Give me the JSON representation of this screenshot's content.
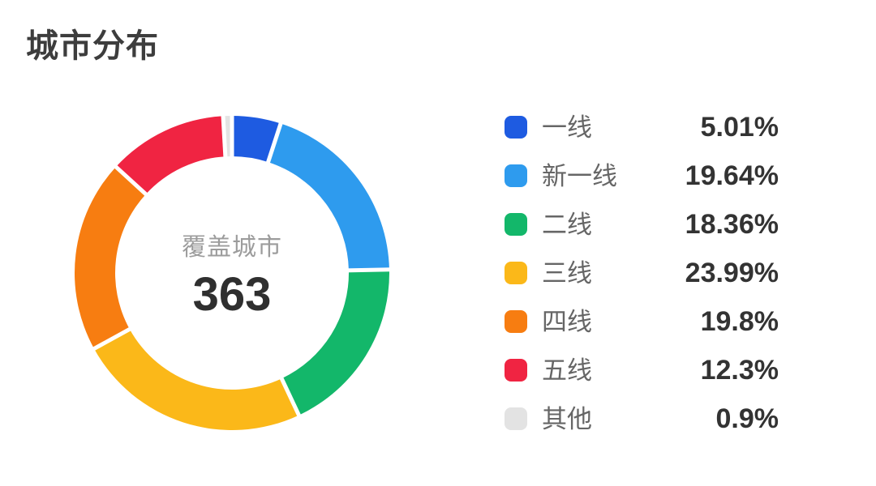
{
  "title": "城市分布",
  "chart_data": {
    "type": "pie",
    "variant": "donut",
    "title": "城市分布",
    "center_label": "覆盖城市",
    "center_value": "363",
    "legend_position": "right",
    "start_angle_deg": 0,
    "direction": "clockwise",
    "items": [
      {
        "id": "tier1",
        "label": "一线",
        "value": 5.01,
        "value_label": "5.01%",
        "color": "#1E5BE1"
      },
      {
        "id": "new-tier1",
        "label": "新一线",
        "value": 19.64,
        "value_label": "19.64%",
        "color": "#2E9BEE"
      },
      {
        "id": "tier2",
        "label": "二线",
        "value": 18.36,
        "value_label": "18.36%",
        "color": "#13B76A"
      },
      {
        "id": "tier3",
        "label": "三线",
        "value": 23.99,
        "value_label": "23.99%",
        "color": "#FBB819"
      },
      {
        "id": "tier4",
        "label": "四线",
        "value": 19.8,
        "value_label": "19.8%",
        "color": "#F77D11"
      },
      {
        "id": "tier5",
        "label": "五线",
        "value": 12.3,
        "value_label": "12.3%",
        "color": "#F02442"
      },
      {
        "id": "other",
        "label": "其他",
        "value": 0.9,
        "value_label": "0.9%",
        "color": "#E3E3E3"
      }
    ],
    "colors": {
      "gap": "#FFFFFF",
      "title_text": "#3D3D3D",
      "label_text": "#666666",
      "value_text": "#333333",
      "center_label_text": "#9C9C9C",
      "center_value_text": "#2F2F2F"
    }
  }
}
